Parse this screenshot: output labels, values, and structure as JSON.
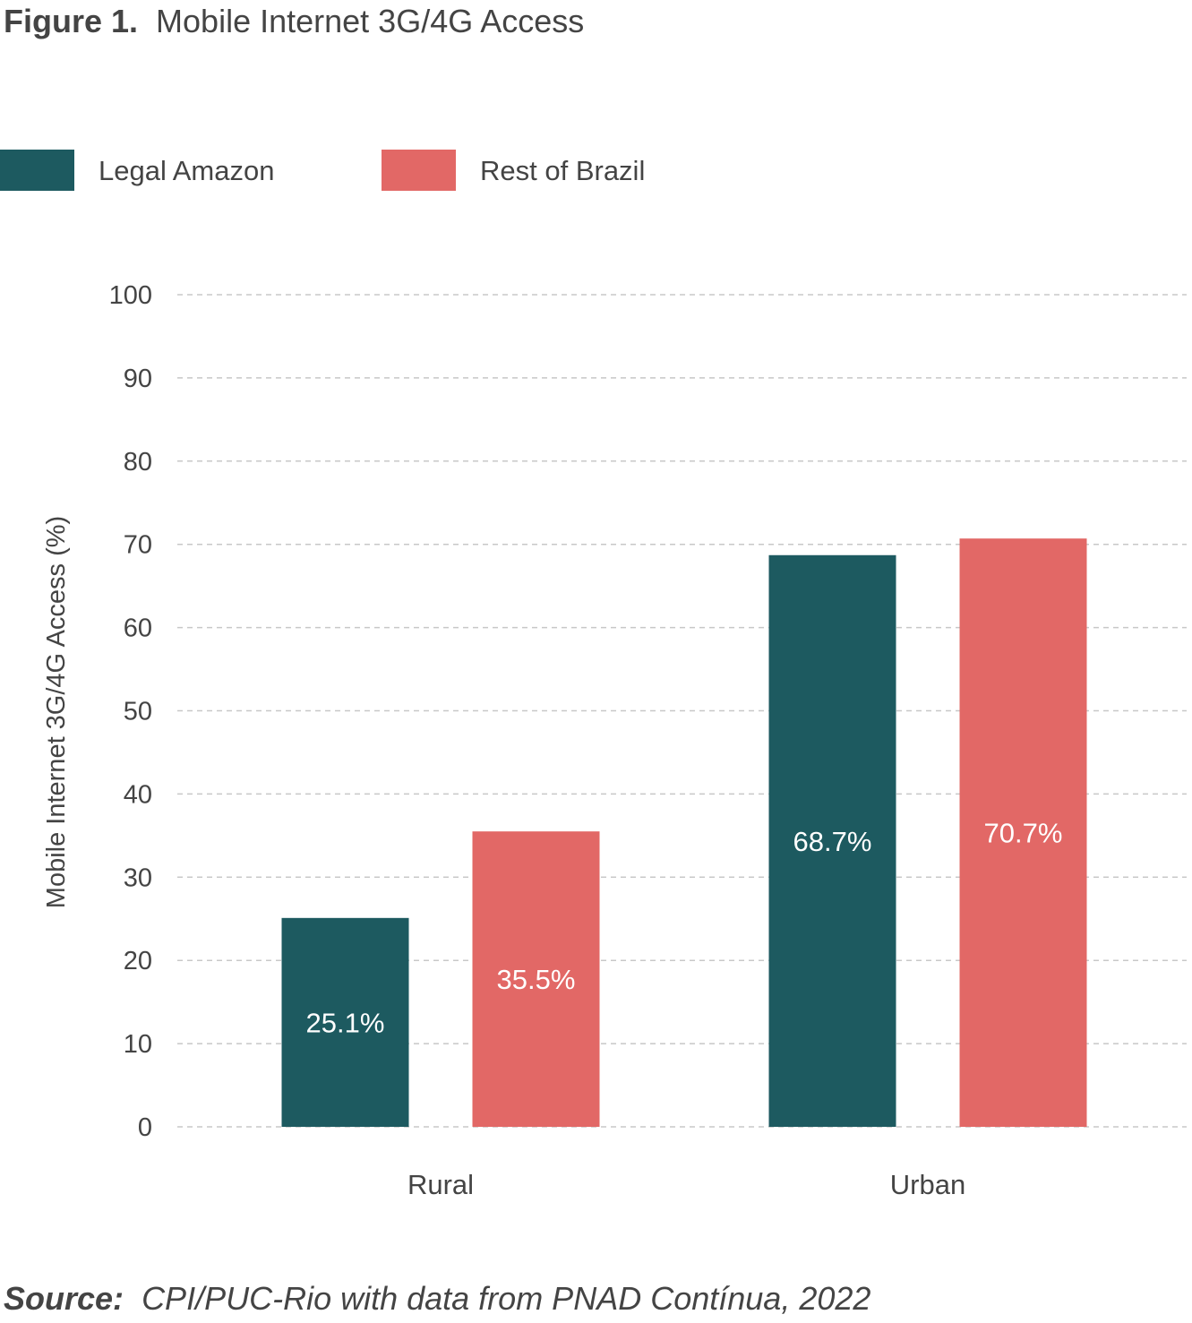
{
  "figure": {
    "label": "Figure 1.",
    "title": "Mobile Internet 3G/4G Access"
  },
  "source": {
    "label": "Source:",
    "text": "CPI/PUC-Rio with data from PNAD Contínua, 2022"
  },
  "chart_data": {
    "type": "bar",
    "title": "Mobile Internet 3G/4G Access",
    "xlabel": "",
    "ylabel": "Mobile Internet 3G/4G Access (%)",
    "categories": [
      "Rural",
      "Urban"
    ],
    "series": [
      {
        "name": "Legal Amazon",
        "color": "#1d5a60",
        "values": [
          25.1,
          68.7
        ],
        "labels": [
          "25.1%",
          "68.7%"
        ]
      },
      {
        "name": "Rest of Brazil",
        "color": "#e26866",
        "values": [
          35.5,
          70.7
        ],
        "labels": [
          "35.5%",
          "70.7%"
        ]
      }
    ],
    "ylim": [
      0,
      100
    ],
    "yticks": [
      0,
      10,
      20,
      30,
      40,
      50,
      60,
      70,
      80,
      90,
      100
    ],
    "grid": true,
    "legend_position": "top-left"
  }
}
